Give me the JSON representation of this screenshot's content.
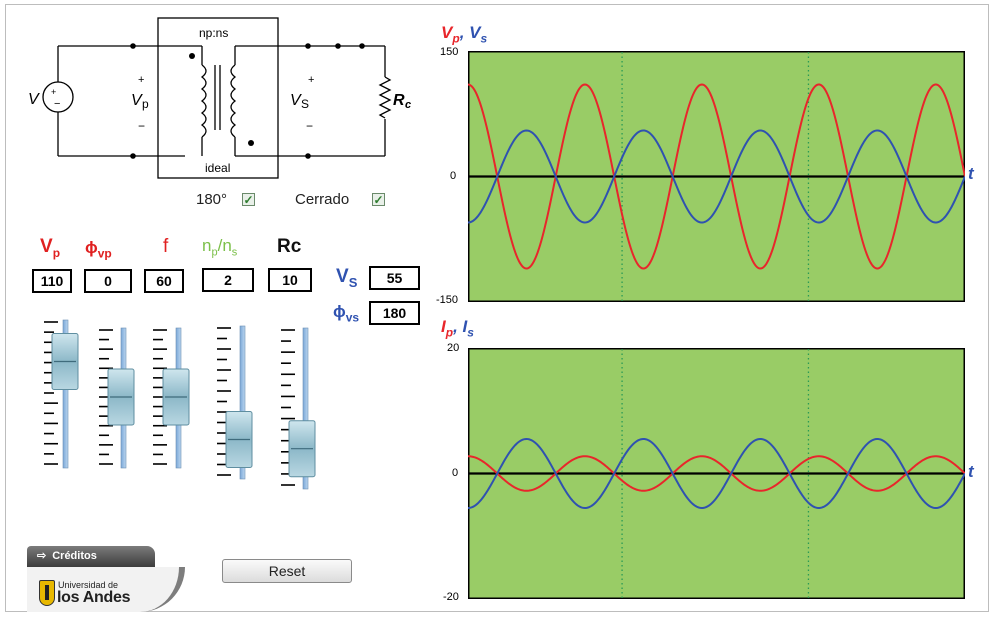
{
  "circuit": {
    "source_label": "V",
    "primary_label": "V",
    "primary_sub": "p",
    "secondary_label": "V",
    "secondary_sub": "S",
    "turns_label": "np:ns",
    "ideal_label": "ideal",
    "load_label": "R",
    "load_sub": "c",
    "plus": "+",
    "minus": "−"
  },
  "options": {
    "phase180_label": "180°",
    "phase180_checked": true,
    "closed_label": "Cerrado",
    "closed_checked": true
  },
  "controls": [
    {
      "key": "vp",
      "label": "V",
      "sub": "p",
      "color": "#e02020",
      "value": "110",
      "level": 0.85
    },
    {
      "key": "phivp",
      "label": "ϕ",
      "sub": "vp",
      "color": "#e02020",
      "value": "0",
      "level": 0.5
    },
    {
      "key": "f",
      "label": "f",
      "sub": "",
      "color": "#e02020",
      "value": "60",
      "level": 0.5
    },
    {
      "key": "npns",
      "label": "n",
      "sub": "p",
      "label2": "/n",
      "sub2": "s",
      "color": "#7cc04a",
      "value": "2",
      "level": 0.1
    },
    {
      "key": "rc",
      "label": "Rc",
      "sub": "",
      "color": "#111111",
      "value": "10",
      "level": 0.1
    }
  ],
  "outputs": {
    "vs_label": "V",
    "vs_sub": "S",
    "vs_value": "55",
    "phivs_label": "ϕ",
    "phivs_sub": "vs",
    "phivs_value": "180"
  },
  "buttons": {
    "reset_label": "Reset",
    "credits_label": "Créditos",
    "credits_arrow": "⇨"
  },
  "logo": {
    "line1": "Universidad de",
    "line2": "los Andes"
  },
  "chart_data": [
    {
      "type": "line",
      "title_parts": [
        "V",
        "p",
        ", ",
        "V",
        "s"
      ],
      "xlabel": "t",
      "ylim": [
        -150,
        150
      ],
      "yticks": [
        "150",
        "0",
        "-150"
      ],
      "grid": "vertical dotted",
      "series": [
        {
          "name": "Vp",
          "color": "#e8262b",
          "amplitude": 110,
          "phase_deg": 90,
          "cycles": 4.25
        },
        {
          "name": "Vs",
          "color": "#2f52b0",
          "amplitude": 55,
          "phase_deg": 270,
          "cycles": 4.25
        }
      ]
    },
    {
      "type": "line",
      "title_parts": [
        "I",
        "p",
        ", ",
        "I",
        "s"
      ],
      "xlabel": "t",
      "ylim": [
        -20,
        20
      ],
      "yticks": [
        "20",
        "0",
        "-20"
      ],
      "grid": "vertical dotted",
      "series": [
        {
          "name": "Ip",
          "color": "#e8262b",
          "amplitude": 2.75,
          "phase_deg": 90,
          "cycles": 4.25
        },
        {
          "name": "Is",
          "color": "#2f52b0",
          "amplitude": 5.5,
          "phase_deg": 270,
          "cycles": 4.25
        }
      ]
    }
  ]
}
